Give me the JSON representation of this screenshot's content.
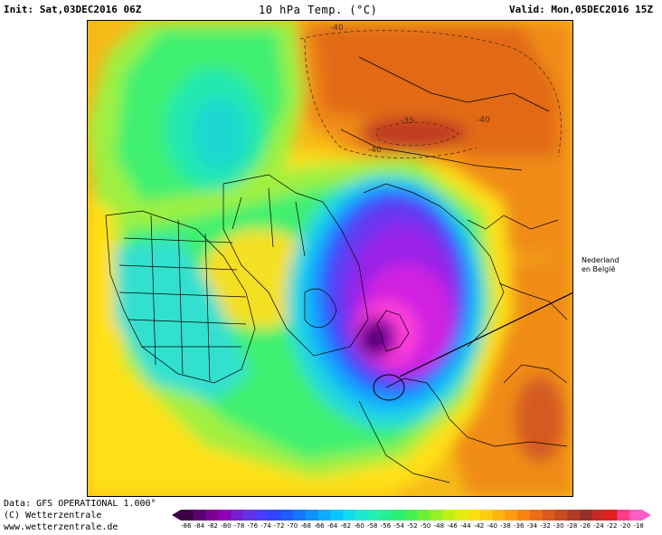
{
  "header": {
    "init": "Init: Sat,03DEC2016 06Z",
    "title": "10 hPa Temp. (°C)",
    "valid": "Valid: Mon,05DEC2016 15Z"
  },
  "map": {
    "contour_labels": [
      "-40",
      "-35",
      "-40",
      "-40"
    ],
    "annotation": {
      "line1": "Nederland",
      "line2": "en België"
    }
  },
  "footer": {
    "data_line": "Data: GFS OPERATIONAL 1.000°",
    "copyright": "(C) Wetterzentrale",
    "url": "www.wetterzentrale.de"
  },
  "colorbar": {
    "ticks": [
      "-86",
      "-84",
      "-82",
      "-80",
      "-78",
      "-76",
      "-74",
      "-72",
      "-70",
      "-68",
      "-66",
      "-64",
      "-62",
      "-60",
      "-58",
      "-56",
      "-54",
      "-52",
      "-50",
      "-48",
      "-46",
      "-44",
      "-42",
      "-40",
      "-38",
      "-36",
      "-34",
      "-32",
      "-30",
      "-28",
      "-26",
      "-24",
      "-22",
      "-20",
      "-18"
    ],
    "colors": [
      "#3b0046",
      "#5a0070",
      "#7a0095",
      "#8f00b8",
      "#7a1cd0",
      "#6432e6",
      "#4a3cff",
      "#2e46ff",
      "#1f5cff",
      "#1477ff",
      "#0e92ff",
      "#0aacff",
      "#06c6ff",
      "#10dcf0",
      "#1ee8d0",
      "#22f0b0",
      "#26f090",
      "#2ef070",
      "#46f050",
      "#6cf036",
      "#96f024",
      "#c0f018",
      "#e2ee12",
      "#f8e010",
      "#ffcc10",
      "#ffb410",
      "#ff9c10",
      "#f88410",
      "#ec6c18",
      "#dc5a1e",
      "#c84a22",
      "#b03c26",
      "#98302a",
      "#c82828",
      "#e02020",
      "#ff3c8c",
      "#ff5cc8"
    ]
  }
}
